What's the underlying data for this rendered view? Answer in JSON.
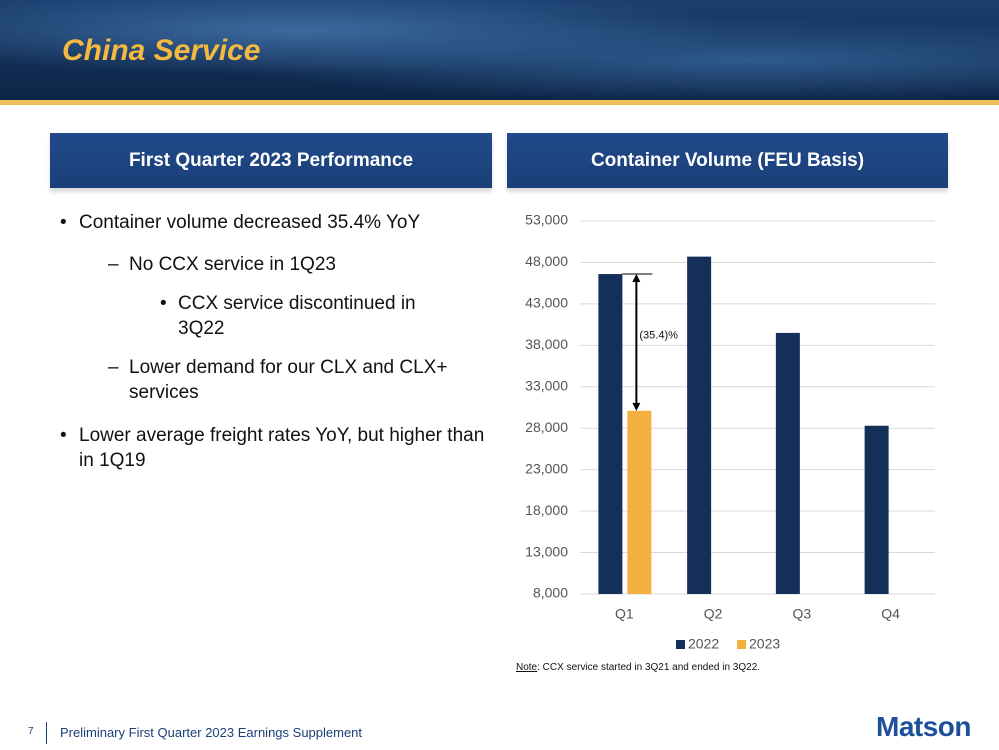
{
  "slide_title": "China Service",
  "left_header": "First Quarter 2023 Performance",
  "bullets": [
    {
      "text": "Container volume decreased 35.4% YoY",
      "level": 1
    },
    {
      "text": "No CCX service in 1Q23",
      "level": 2
    },
    {
      "text": "CCX service discontinued in 3Q22",
      "level": 3
    },
    {
      "text": "Lower demand for our CLX and CLX+ services",
      "level": 2
    },
    {
      "text": "Lower average freight rates YoY, but higher than in 1Q19",
      "level": 1
    }
  ],
  "note_label": "Note",
  "note_text": ": CCX service started in 3Q21 and ended in 3Q22.",
  "footer": {
    "page": "7",
    "text": "Preliminary First Quarter 2023 Earnings Supplement",
    "logo": "Matson"
  },
  "chart_data": {
    "type": "bar",
    "title": "Container Volume (FEU Basis)",
    "categories": [
      "Q1",
      "Q2",
      "Q3",
      "Q4"
    ],
    "series": [
      {
        "name": "2022",
        "color": "#14305a",
        "values": [
          46600,
          48700,
          39500,
          28300
        ]
      },
      {
        "name": "2023",
        "color": "#f4b03e",
        "values": [
          30100,
          null,
          null,
          null
        ]
      }
    ],
    "annotation": "(35.4)%",
    "ylim": [
      8000,
      53000
    ],
    "yticks": [
      {
        "value": 8000,
        "label": "8,000"
      },
      {
        "value": 13000,
        "label": "13,000"
      },
      {
        "value": 18000,
        "label": "18,000"
      },
      {
        "value": 23000,
        "label": "23,000"
      },
      {
        "value": 28000,
        "label": "28,000"
      },
      {
        "value": 33000,
        "label": "33,000"
      },
      {
        "value": 38000,
        "label": "38,000"
      },
      {
        "value": 43000,
        "label": "43,000"
      },
      {
        "value": 48000,
        "label": "48,000"
      },
      {
        "value": 53000,
        "label": "53,000"
      }
    ],
    "grid": true,
    "legend": "bottom"
  }
}
